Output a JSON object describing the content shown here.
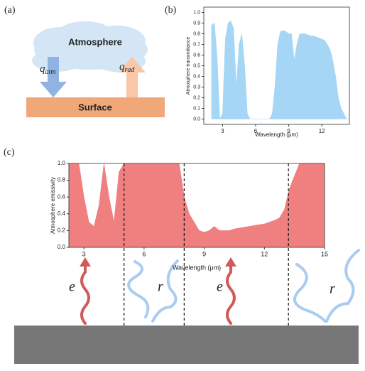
{
  "diagram": {
    "label": "(a)",
    "atmosphere": "Atmosphere",
    "q_atm": {
      "symbol": "q",
      "subscript": "atm"
    },
    "q_rad": {
      "symbol": "q",
      "subscript": "rad"
    },
    "surface": "Surface"
  },
  "chart_data": [
    {
      "type": "area",
      "label": "(b)",
      "xlabel": "Wavelength (μm)",
      "ylabel": "Atmosphere transmittance",
      "color": "#a6d6f5",
      "xlim": [
        1.3,
        14.5
      ],
      "xticks": [
        3,
        6,
        9,
        12
      ],
      "ylim": [
        -0.05,
        1.05
      ],
      "yticks": [
        {
          "value": 0,
          "label": "0.0"
        },
        0.1,
        0.2,
        0.3,
        0.4,
        0.5,
        0.6,
        0.7,
        0.8,
        0.9,
        {
          "value": 1,
          "label": "1.0"
        }
      ],
      "x": [
        2.0,
        2.25,
        2.5,
        2.75,
        3.0,
        3.25,
        3.5,
        3.75,
        4.0,
        4.25,
        4.5,
        4.75,
        5.0,
        5.25,
        5.5,
        5.75,
        6.0,
        6.25,
        6.5,
        6.75,
        7.0,
        7.25,
        7.5,
        7.75,
        8.0,
        8.25,
        8.5,
        8.75,
        9.0,
        9.25,
        9.5,
        9.75,
        10.0,
        10.25,
        10.5,
        10.75,
        11.0,
        11.25,
        11.5,
        11.75,
        12.0,
        12.25,
        12.5,
        12.75,
        13.0,
        13.25,
        13.5,
        13.75,
        14.0,
        14.25,
        14.5
      ],
      "values": [
        0.88,
        0.9,
        0.6,
        0,
        0.05,
        0.75,
        0.9,
        0.92,
        0.85,
        0.3,
        0.7,
        0.8,
        0.5,
        0.05,
        0,
        0,
        0,
        0,
        0,
        0,
        0,
        0,
        0.05,
        0.3,
        0.7,
        0.82,
        0.83,
        0.82,
        0.8,
        0.8,
        0.55,
        0.7,
        0.8,
        0.8,
        0.8,
        0.79,
        0.78,
        0.78,
        0.77,
        0.76,
        0.75,
        0.74,
        0.7,
        0.65,
        0.55,
        0.4,
        0.2,
        0.1,
        0.05,
        0,
        0
      ]
    },
    {
      "type": "area",
      "label": "(c)",
      "xlabel": "Wavelength (μm)",
      "ylabel": "Atmosphere emissivity",
      "color": "#f07f80",
      "xlim": [
        2.25,
        15
      ],
      "xticks": [
        3,
        6,
        9,
        12,
        15
      ],
      "ylim": [
        0,
        1
      ],
      "yticks": [
        {
          "value": 0,
          "label": "0.0"
        },
        0.2,
        0.4,
        0.6,
        0.8,
        {
          "value": 1,
          "label": "1.0"
        }
      ],
      "x": [
        2.25,
        2.5,
        2.75,
        3.0,
        3.25,
        3.5,
        3.75,
        4.0,
        4.25,
        4.5,
        4.75,
        5.0,
        5.25,
        5.5,
        5.75,
        6.0,
        6.25,
        6.5,
        6.75,
        7.0,
        7.25,
        7.5,
        7.75,
        8.0,
        8.25,
        8.5,
        8.75,
        9.0,
        9.25,
        9.5,
        9.75,
        10.0,
        10.25,
        10.5,
        10.75,
        11.0,
        11.25,
        11.5,
        11.75,
        12.0,
        12.25,
        12.5,
        12.75,
        13.0,
        13.25,
        13.5,
        13.75,
        14.0,
        14.25,
        14.5,
        14.75,
        15.0
      ],
      "values": [
        1,
        1,
        1,
        0.6,
        0.3,
        0.25,
        0.5,
        1,
        0.6,
        0.3,
        0.9,
        1,
        1,
        1,
        1,
        1,
        1,
        1,
        1,
        1,
        1,
        1,
        1,
        0.6,
        0.4,
        0.3,
        0.2,
        0.18,
        0.2,
        0.25,
        0.2,
        0.2,
        0.2,
        0.22,
        0.23,
        0.24,
        0.25,
        0.26,
        0.27,
        0.28,
        0.3,
        0.32,
        0.35,
        0.45,
        0.7,
        0.85,
        1,
        1,
        1,
        1,
        1,
        1
      ],
      "dividers": [
        5,
        8,
        13.2
      ],
      "annotations": [
        "e",
        "r",
        "e",
        "r"
      ]
    }
  ]
}
